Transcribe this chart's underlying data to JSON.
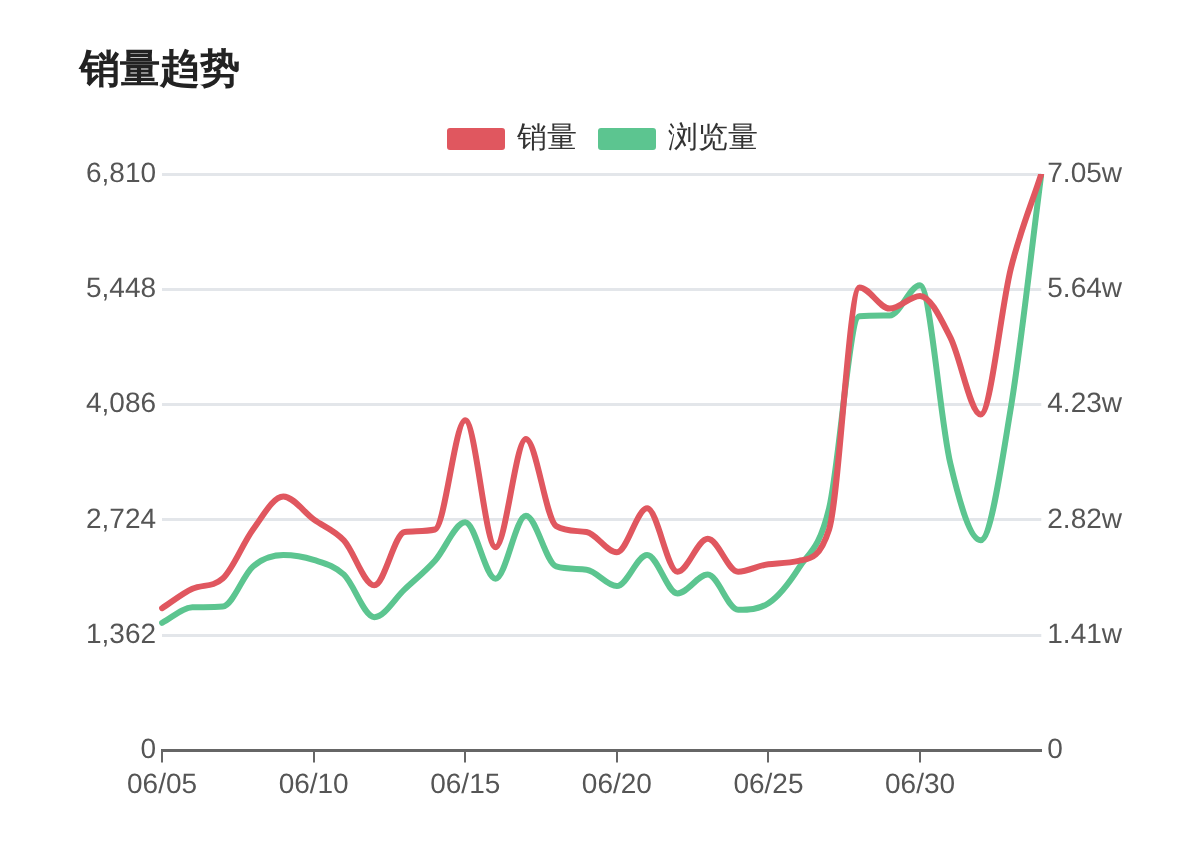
{
  "chart_data": {
    "type": "line",
    "title": "销量趋势",
    "categories": [
      "06/05",
      null,
      null,
      null,
      null,
      "06/10",
      null,
      null,
      null,
      null,
      "06/15",
      null,
      null,
      null,
      null,
      "06/20",
      null,
      null,
      null,
      null,
      "06/25",
      null,
      null,
      null,
      null,
      "06/30",
      null,
      null,
      null,
      null
    ],
    "series": [
      {
        "name": "销量",
        "color": "#e0575f",
        "values": [
          1680,
          1910,
          2030,
          2610,
          3000,
          2730,
          2480,
          1950,
          2580,
          2610,
          3900,
          2400,
          3680,
          2650,
          2580,
          2340,
          2860,
          2110,
          2500,
          2110,
          2200,
          2240,
          2610,
          5470,
          5220,
          5370,
          4880,
          3970,
          5700,
          6810
        ]
      },
      {
        "name": "浏览量",
        "color": "#5cc590",
        "axis": "y2",
        "values": [
          1.56,
          1.75,
          1.76,
          2.25,
          2.39,
          2.33,
          2.15,
          1.63,
          1.97,
          2.32,
          2.79,
          2.1,
          2.87,
          2.25,
          2.21,
          2.01,
          2.39,
          1.92,
          2.15,
          1.72,
          1.8,
          2.23,
          2.96,
          5.31,
          5.32,
          5.69,
          3.51,
          2.57,
          4.2,
          7.05
        ]
      }
    ],
    "ylim": [
      0,
      6810
    ],
    "yticks": [
      0,
      {
        "value": 1362,
        "label": "1,362"
      },
      {
        "value": 2724,
        "label": "2,724"
      },
      {
        "value": 4086,
        "label": "4,086"
      },
      {
        "value": 5448,
        "label": "5,448"
      },
      {
        "value": 6810,
        "label": "6,810"
      }
    ],
    "y2lim": [
      0,
      7.05
    ],
    "y2ticks": [
      0,
      {
        "value": 1.41,
        "label": "1.41w"
      },
      {
        "value": 2.82,
        "label": "2.82w"
      },
      {
        "value": 4.23,
        "label": "4.23w"
      },
      {
        "value": 5.64,
        "label": "5.64w"
      },
      {
        "value": 7.05,
        "label": "7.05w"
      }
    ],
    "grid": "y",
    "legend": "top",
    "marker": "none",
    "line_style": "solid"
  }
}
